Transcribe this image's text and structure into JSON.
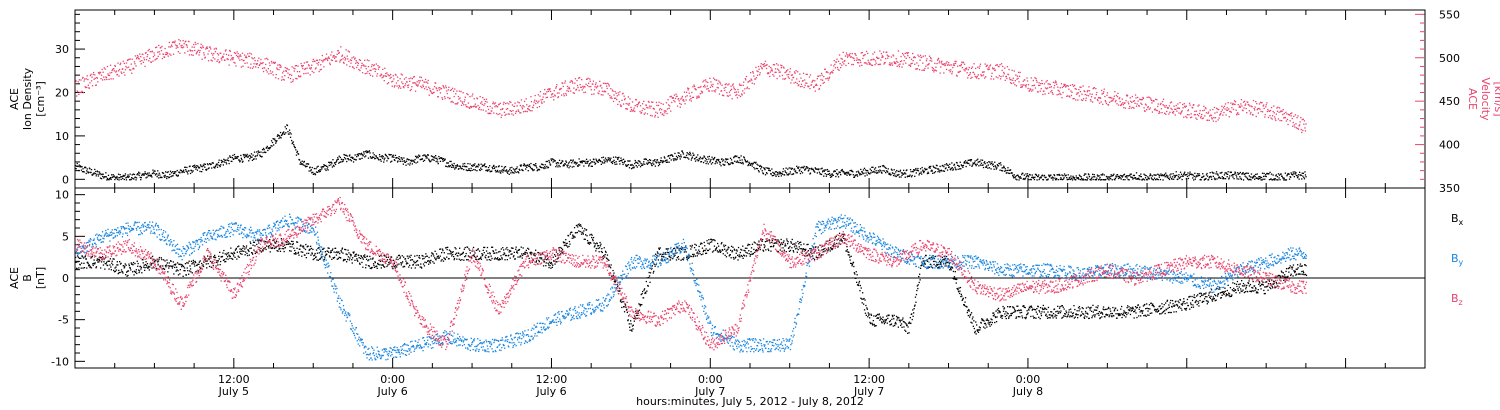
{
  "colors": {
    "density": "#000000",
    "velocity": "#e8446c",
    "bx": "#000000",
    "by": "#1a86e0",
    "bz": "#e8446c",
    "axis": "#000000"
  },
  "chart_data": [
    {
      "type": "scatter",
      "panel": "top",
      "x_range_hours": [
        0,
        102
      ],
      "left_axis": {
        "label_lines": [
          "ACE",
          "Ion Density",
          "[cm⁻³]"
        ],
        "ylim": [
          -2,
          39
        ],
        "ticks": [
          0,
          10,
          20,
          30
        ]
      },
      "right_axis": {
        "label_lines": [
          "ACE",
          "Velocity",
          "[km/s]"
        ],
        "ylim": [
          350,
          555
        ],
        "ticks": [
          350,
          400,
          450,
          500,
          550
        ]
      },
      "series": [
        {
          "key": "density",
          "axis": "left",
          "x": [
            0,
            2,
            3,
            4,
            5,
            6,
            7,
            8,
            9,
            10,
            11,
            12,
            13,
            14,
            15,
            16,
            17,
            18,
            19,
            20,
            21,
            22,
            23,
            24,
            25,
            26,
            27,
            28,
            29,
            30,
            31,
            32,
            33,
            34,
            35,
            36,
            37,
            38,
            39,
            40,
            41,
            42,
            43,
            44,
            45,
            46,
            47,
            48,
            49,
            50,
            51,
            52,
            53,
            54,
            55,
            56,
            57,
            58,
            59,
            60,
            61,
            62,
            63,
            64,
            65,
            66,
            67,
            68,
            69,
            70,
            71,
            72,
            73,
            74,
            75,
            76,
            77,
            78,
            79,
            80,
            81,
            82,
            83,
            84,
            85,
            86,
            87,
            88,
            89,
            90,
            91,
            92,
            93
          ],
          "values": [
            3,
            1,
            0.5,
            0.5,
            1,
            1.5,
            1,
            2,
            2.5,
            3,
            4,
            5,
            5,
            6,
            9,
            12,
            4,
            2,
            3,
            5,
            5,
            6,
            5,
            5,
            4,
            5,
            5,
            4,
            3,
            3,
            3,
            2.5,
            2,
            3,
            3,
            4,
            3.5,
            4,
            4,
            4.5,
            4.5,
            3.5,
            4,
            4,
            5,
            6,
            5,
            4.5,
            4,
            5,
            4,
            2,
            1.5,
            2,
            2.5,
            2,
            1.5,
            1.5,
            1.5,
            2,
            2.5,
            1.5,
            1.5,
            2,
            2.5,
            3,
            3.5,
            4,
            3.5,
            3,
            1,
            0.5,
            0.5,
            0.5,
            0.5,
            0.5,
            0.5,
            0.5,
            0.5,
            1,
            0.5,
            0.5,
            1,
            1,
            0.5,
            1,
            1,
            1,
            0.5,
            1,
            0.5,
            1,
            1
          ]
        },
        {
          "key": "velocity",
          "axis": "right",
          "x": [
            0,
            2,
            4,
            6,
            8,
            10,
            12,
            14,
            16,
            18,
            20,
            22,
            24,
            26,
            28,
            30,
            32,
            34,
            36,
            38,
            40,
            42,
            44,
            46,
            48,
            50,
            52,
            54,
            56,
            58,
            60,
            62,
            64,
            66,
            68,
            70,
            72,
            74,
            76,
            78,
            80,
            82,
            84,
            86,
            88,
            90,
            92,
            93
          ],
          "values": [
            465,
            480,
            490,
            505,
            515,
            505,
            500,
            495,
            480,
            490,
            505,
            490,
            475,
            470,
            460,
            450,
            440,
            445,
            460,
            470,
            465,
            445,
            440,
            455,
            470,
            460,
            490,
            480,
            470,
            500,
            500,
            500,
            495,
            490,
            485,
            485,
            470,
            465,
            460,
            455,
            450,
            445,
            440,
            435,
            445,
            440,
            430,
            420
          ]
        }
      ]
    },
    {
      "type": "scatter",
      "panel": "bottom",
      "x_range_hours": [
        0,
        102
      ],
      "left_axis": {
        "label_lines": [
          "ACE",
          "B",
          "[nT]"
        ],
        "ylim": [
          -10.8,
          10.8
        ],
        "ticks": [
          -10,
          -5,
          0,
          5,
          10
        ]
      },
      "legend": [
        {
          "key": "bx",
          "label": "B",
          "sub": "x"
        },
        {
          "key": "by",
          "label": "B",
          "sub": "y"
        },
        {
          "key": "bz",
          "label": "B",
          "sub": "z"
        }
      ],
      "series": [
        {
          "key": "bx",
          "x": [
            0,
            2,
            4,
            6,
            8,
            10,
            12,
            14,
            16,
            18,
            20,
            22,
            24,
            26,
            28,
            30,
            32,
            34,
            36,
            38,
            40,
            42,
            44,
            46,
            48,
            50,
            52,
            54,
            56,
            58,
            60,
            62,
            63,
            64,
            66,
            68,
            70,
            72,
            74,
            76,
            78,
            80,
            82,
            84,
            86,
            88,
            90,
            92,
            93
          ],
          "values": [
            2,
            2,
            1,
            2,
            1,
            2,
            3,
            4,
            4,
            3,
            3,
            2,
            2,
            2,
            3,
            3,
            3,
            3,
            2,
            6,
            3,
            -6,
            3,
            3,
            4,
            3,
            4,
            4,
            3,
            5,
            -5,
            -5,
            -6,
            2,
            2,
            -6,
            -4,
            -4,
            -4,
            -4,
            -4,
            -4,
            -3.5,
            -3,
            -2,
            -1,
            -1,
            1,
            1
          ]
        },
        {
          "key": "by",
          "x": [
            0,
            2,
            4,
            6,
            8,
            10,
            12,
            14,
            16,
            18,
            20,
            22,
            24,
            26,
            28,
            30,
            32,
            34,
            36,
            38,
            40,
            42,
            44,
            46,
            48,
            50,
            52,
            54,
            56,
            58,
            60,
            62,
            64,
            66,
            68,
            70,
            72,
            74,
            76,
            78,
            80,
            82,
            84,
            86,
            88,
            90,
            92,
            93
          ],
          "values": [
            3,
            5,
            6,
            6,
            3,
            5,
            6,
            5,
            7,
            6,
            -3,
            -9,
            -9,
            -8,
            -7,
            -8,
            -8,
            -7,
            -5,
            -4,
            -3,
            2,
            2,
            4,
            -6,
            -8,
            -8,
            -8,
            6,
            7,
            5,
            3,
            2,
            2,
            2,
            1,
            1,
            1,
            0.5,
            1,
            1,
            0.5,
            0,
            -1,
            1,
            2,
            3,
            3
          ]
        },
        {
          "key": "bz",
          "x": [
            0,
            2,
            4,
            6,
            8,
            10,
            12,
            14,
            16,
            18,
            20,
            22,
            24,
            26,
            28,
            30,
            32,
            34,
            36,
            38,
            40,
            42,
            44,
            46,
            48,
            50,
            52,
            54,
            56,
            58,
            60,
            62,
            64,
            66,
            68,
            70,
            72,
            74,
            76,
            78,
            80,
            82,
            84,
            86,
            88,
            90,
            92,
            93
          ],
          "values": [
            4,
            3,
            4,
            2,
            -3,
            3,
            -2,
            4,
            5,
            7,
            9,
            4,
            2,
            -5,
            -8,
            3,
            -4,
            2,
            3,
            2,
            2,
            -4,
            -5,
            -3,
            -8,
            -6,
            6,
            2,
            3,
            5,
            3,
            2,
            4,
            3,
            -1,
            -2,
            -1,
            -1,
            0,
            1,
            0,
            1,
            2,
            2,
            1,
            0,
            -1,
            -1
          ]
        }
      ]
    }
  ],
  "x_axis": {
    "ticks": [
      {
        "hour": 12,
        "line1": "12:00",
        "line2": "July 5"
      },
      {
        "hour": 24,
        "line1": "0:00",
        "line2": "July 6"
      },
      {
        "hour": 36,
        "line1": "12:00",
        "line2": "July 6"
      },
      {
        "hour": 48,
        "line1": "0:00",
        "line2": "July 7"
      },
      {
        "hour": 60,
        "line1": "12:00",
        "line2": "July 7"
      },
      {
        "hour": 72,
        "line1": "0:00",
        "line2": "July 8"
      }
    ],
    "title": "hours:minutes, July  5, 2012 - July  8, 2012"
  }
}
